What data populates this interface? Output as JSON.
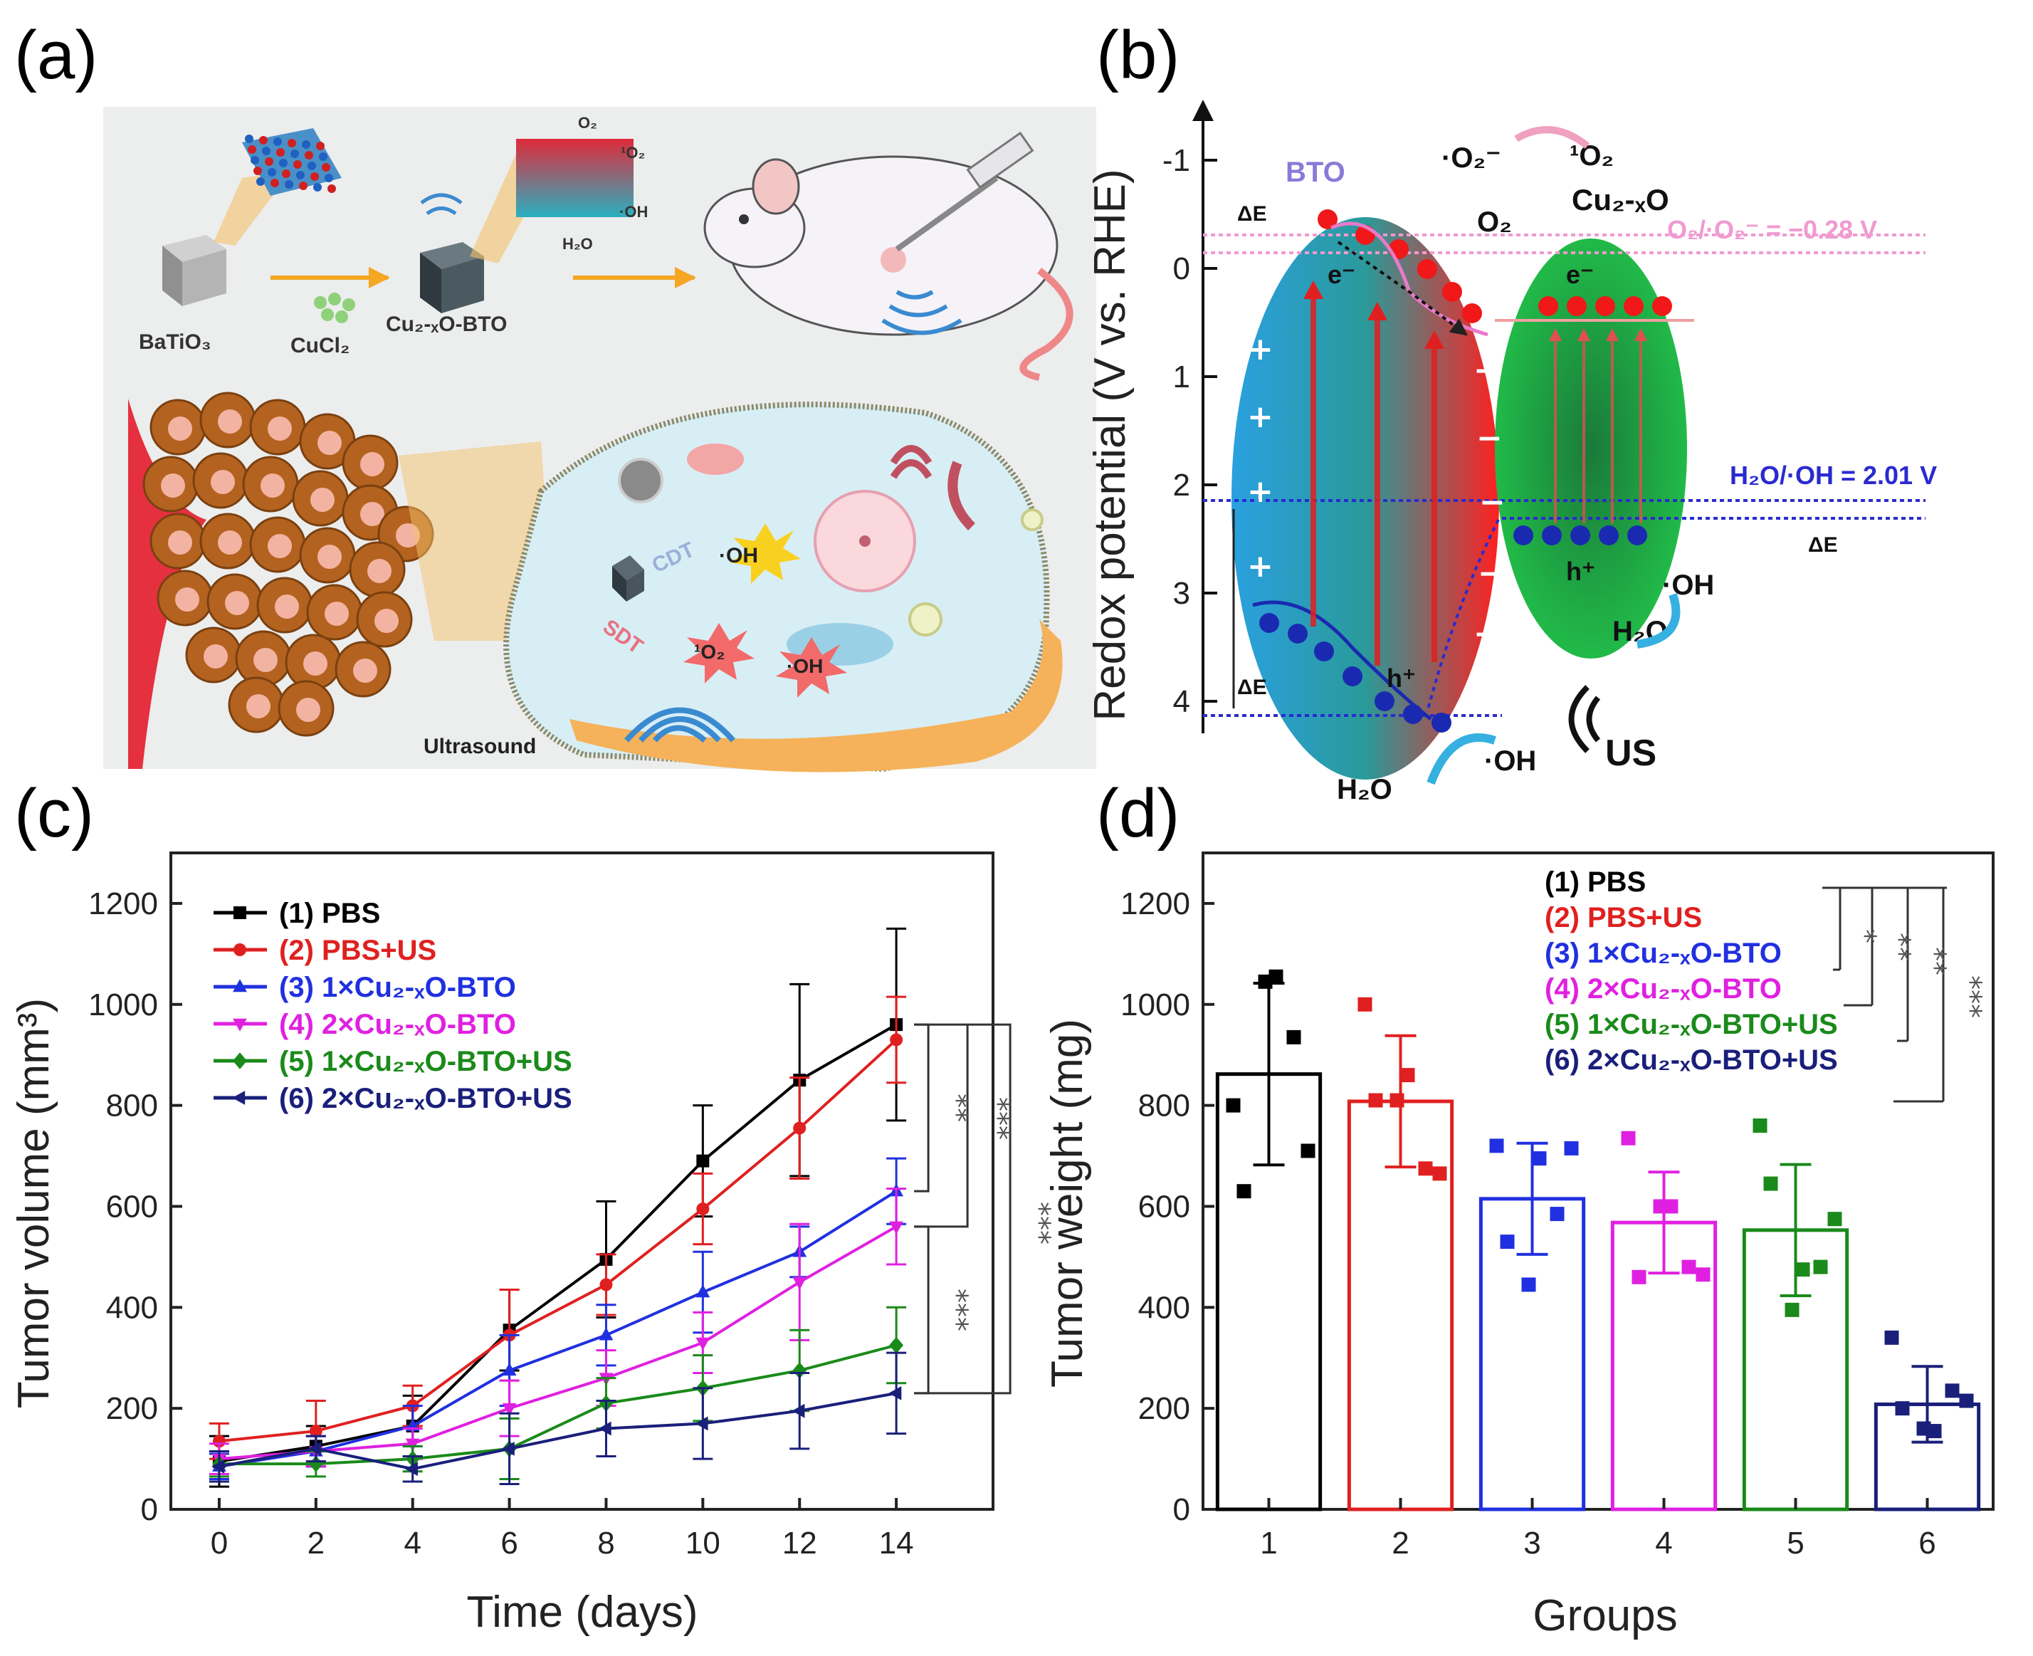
{
  "panels": {
    "a": "(a)",
    "b": "(b)",
    "c": "(c)",
    "d": "(d)"
  },
  "schematic_a": {
    "batio3": "BaTiO₃",
    "cucl2": "CuCl₂",
    "cu_bto": "Cu₂-ₓO-BTO",
    "o2": "O₂",
    "singlet_o2": "¹O₂",
    "oh": "·OH",
    "h2o": "H₂O",
    "cdt": "CDT",
    "sdt": "SDT",
    "oh_cell": "·OH",
    "singlet_cell": "¹O₂",
    "oh_cell2": "·OH",
    "ultrasound": "Ultrasound"
  },
  "diagram_b": {
    "ylabel": "Redox potential (V vs. RHE)",
    "yticks": [
      "-1",
      "0",
      "1",
      "2",
      "3",
      "4"
    ],
    "bto": "BTO",
    "cu2o": "Cu₂-ₓO",
    "superoxide": "·O₂⁻",
    "singlet": "¹O₂",
    "o2": "O₂",
    "o2_level": "O₂/·O₂⁻ = −0.28 V",
    "oh_level": "H₂O/·OH = 2.01 V",
    "delta_e": "ΔE",
    "electron": "e⁻",
    "hole": "h⁺",
    "oh": "·OH",
    "h2o": "H₂O",
    "us": "US"
  },
  "chart_data": [
    {
      "type": "line",
      "title": "",
      "xlabel": "Time (days)",
      "ylabel": "Tumor volume (mm³)",
      "x": [
        0,
        2,
        4,
        6,
        8,
        10,
        12,
        14
      ],
      "xlim": [
        -1,
        16
      ],
      "ylim": [
        0,
        1300
      ],
      "yticks": [
        0,
        200,
        400,
        600,
        800,
        1000,
        1200
      ],
      "xticks": [
        0,
        2,
        4,
        6,
        8,
        10,
        12,
        14
      ],
      "series": [
        {
          "name": "(1) PBS",
          "color": "#000000",
          "marker": "square",
          "values": [
            95,
            125,
            165,
            355,
            495,
            690,
            850,
            960
          ],
          "errors": [
            50,
            40,
            60,
            80,
            115,
            110,
            190,
            190
          ]
        },
        {
          "name": "(2) PBS+US",
          "color": "#e02020",
          "marker": "circle",
          "values": [
            135,
            155,
            205,
            345,
            445,
            595,
            755,
            930
          ],
          "errors": [
            35,
            60,
            40,
            90,
            60,
            70,
            100,
            85
          ]
        },
        {
          "name": "(3) 1×Cu₂-ₓO-BTO",
          "color": "#2030e0",
          "marker": "triangle-up",
          "values": [
            85,
            115,
            165,
            275,
            345,
            430,
            510,
            630
          ],
          "errors": [
            25,
            30,
            40,
            70,
            60,
            80,
            50,
            65
          ]
        },
        {
          "name": "(4) 2×Cu₂-ₓO-BTO",
          "color": "#e020e0",
          "marker": "triangle-down",
          "values": [
            100,
            115,
            130,
            200,
            260,
            330,
            450,
            560
          ],
          "errors": [
            30,
            30,
            30,
            55,
            55,
            60,
            115,
            75
          ]
        },
        {
          "name": "(5) 1×Cu₂-ₓO-BTO+US",
          "color": "#1a8a1a",
          "marker": "diamond",
          "values": [
            90,
            90,
            100,
            120,
            210,
            240,
            275,
            325
          ],
          "errors": [
            25,
            25,
            25,
            60,
            50,
            65,
            80,
            75
          ]
        },
        {
          "name": "(6) 2×Cu₂-ₓO-BTO+US",
          "color": "#1a1f7a",
          "marker": "triangle-left",
          "values": [
            85,
            120,
            80,
            120,
            160,
            170,
            195,
            230
          ],
          "errors": [
            30,
            25,
            25,
            70,
            55,
            70,
            75,
            80
          ]
        }
      ],
      "significance": [
        "**",
        "***",
        "***"
      ]
    },
    {
      "type": "bar",
      "title": "",
      "xlabel": "Groups",
      "ylabel": "Tumor weight (mg)",
      "categories": [
        "1",
        "2",
        "3",
        "4",
        "5",
        "6"
      ],
      "ylim": [
        0,
        1300
      ],
      "yticks": [
        0,
        200,
        400,
        600,
        800,
        1000,
        1200
      ],
      "values": [
        862,
        808,
        615,
        568,
        553,
        208
      ],
      "errors": [
        180,
        130,
        110,
        100,
        130,
        75
      ],
      "colors": [
        "#000000",
        "#e02020",
        "#2030e0",
        "#e020e0",
        "#1a8a1a",
        "#1a1f7a"
      ],
      "points": [
        [
          800,
          630,
          1045,
          1055,
          935,
          710
        ],
        [
          1000,
          810,
          810,
          860,
          675,
          665
        ],
        [
          720,
          530,
          445,
          695,
          585,
          715
        ],
        [
          735,
          460,
          600,
          600,
          480,
          465
        ],
        [
          760,
          645,
          395,
          475,
          480,
          575
        ],
        [
          340,
          200,
          160,
          155,
          235,
          215
        ]
      ],
      "legend": [
        "(1) PBS",
        "(2) PBS+US",
        "(3) 1×Cu₂-ₓO-BTO",
        "(4) 2×Cu₂-ₓO-BTO",
        "(5) 1×Cu₂-ₓO-BTO+US",
        "(6) 2×Cu₂-ₓO-BTO+US"
      ],
      "significance": [
        "*",
        "**",
        "**",
        "***"
      ]
    }
  ]
}
